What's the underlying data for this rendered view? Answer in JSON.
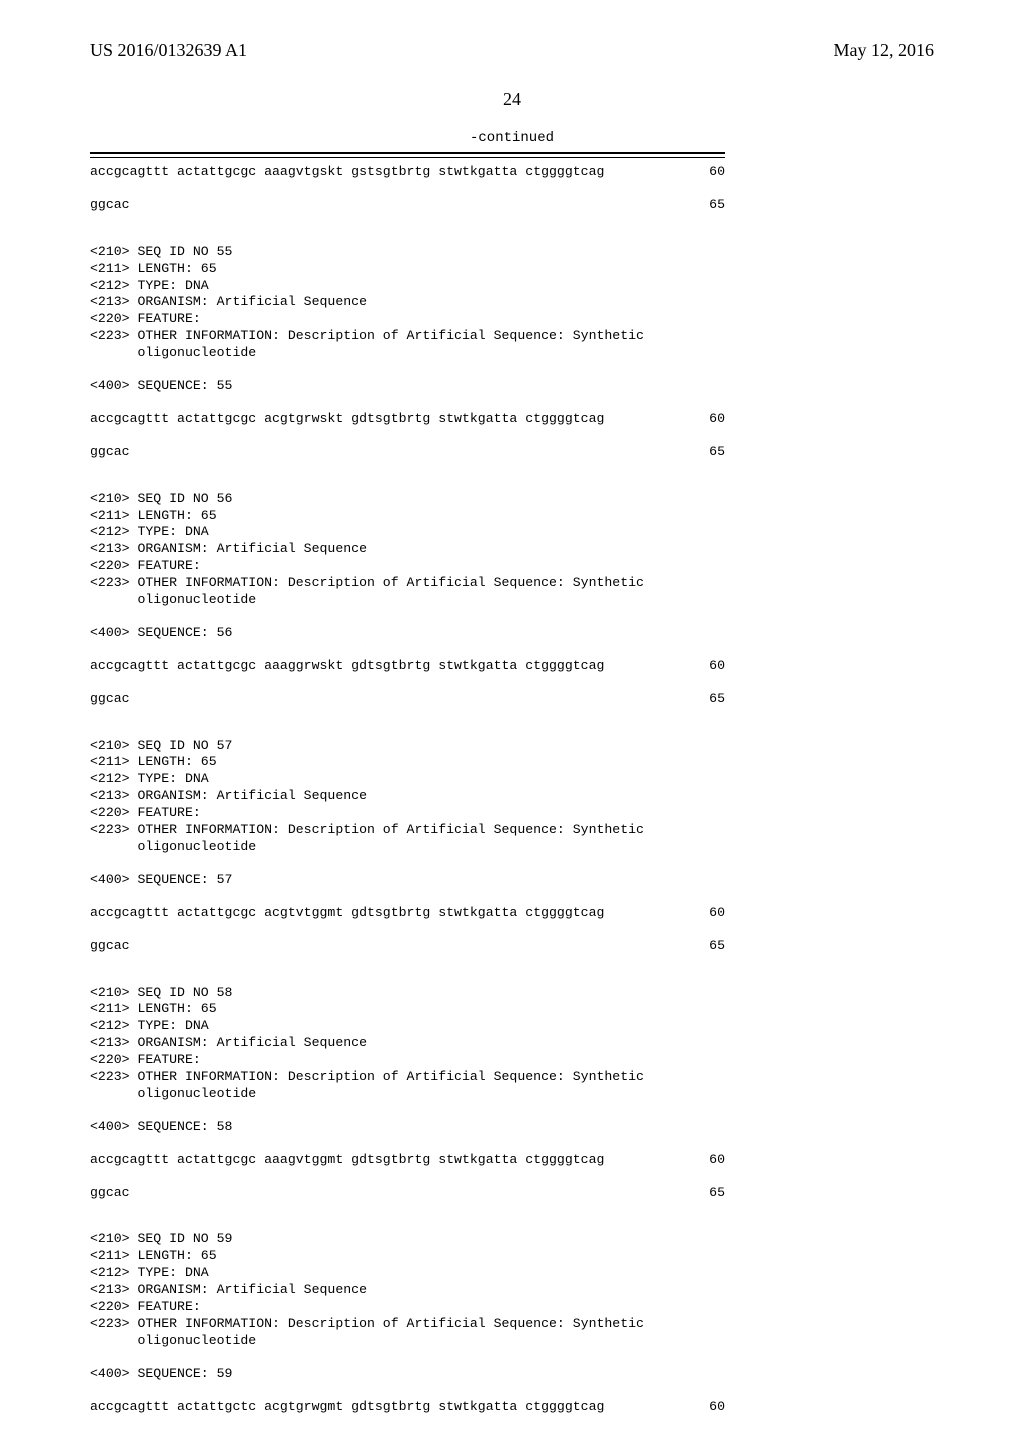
{
  "header": {
    "left": "US 2016/0132639 A1",
    "right": "May 12, 2016"
  },
  "page_number": "24",
  "continued_label": "-continued",
  "blocks": [
    {
      "type": "seqline",
      "text": "accgcagttt actattgcgc aaagvtgskt gstsgtbrtg stwtkgatta ctggggtcag",
      "num": "60"
    },
    {
      "type": "gap",
      "size": "md"
    },
    {
      "type": "seqline",
      "text": "ggcac",
      "num": "65"
    },
    {
      "type": "gap",
      "size": "xl"
    },
    {
      "type": "plain",
      "text": "<210> SEQ ID NO 55"
    },
    {
      "type": "plain",
      "text": "<211> LENGTH: 65"
    },
    {
      "type": "plain",
      "text": "<212> TYPE: DNA"
    },
    {
      "type": "plain",
      "text": "<213> ORGANISM: Artificial Sequence"
    },
    {
      "type": "plain",
      "text": "<220> FEATURE:"
    },
    {
      "type": "plain",
      "text": "<223> OTHER INFORMATION: Description of Artificial Sequence: Synthetic"
    },
    {
      "type": "plain",
      "text": "      oligonucleotide"
    },
    {
      "type": "gap",
      "size": "md"
    },
    {
      "type": "plain",
      "text": "<400> SEQUENCE: 55"
    },
    {
      "type": "gap",
      "size": "md"
    },
    {
      "type": "seqline",
      "text": "accgcagttt actattgcgc acgtgrwskt gdtsgtbrtg stwtkgatta ctggggtcag",
      "num": "60"
    },
    {
      "type": "gap",
      "size": "md"
    },
    {
      "type": "seqline",
      "text": "ggcac",
      "num": "65"
    },
    {
      "type": "gap",
      "size": "xl"
    },
    {
      "type": "plain",
      "text": "<210> SEQ ID NO 56"
    },
    {
      "type": "plain",
      "text": "<211> LENGTH: 65"
    },
    {
      "type": "plain",
      "text": "<212> TYPE: DNA"
    },
    {
      "type": "plain",
      "text": "<213> ORGANISM: Artificial Sequence"
    },
    {
      "type": "plain",
      "text": "<220> FEATURE:"
    },
    {
      "type": "plain",
      "text": "<223> OTHER INFORMATION: Description of Artificial Sequence: Synthetic"
    },
    {
      "type": "plain",
      "text": "      oligonucleotide"
    },
    {
      "type": "gap",
      "size": "md"
    },
    {
      "type": "plain",
      "text": "<400> SEQUENCE: 56"
    },
    {
      "type": "gap",
      "size": "md"
    },
    {
      "type": "seqline",
      "text": "accgcagttt actattgcgc aaaggrwskt gdtsgtbrtg stwtkgatta ctggggtcag",
      "num": "60"
    },
    {
      "type": "gap",
      "size": "md"
    },
    {
      "type": "seqline",
      "text": "ggcac",
      "num": "65"
    },
    {
      "type": "gap",
      "size": "xl"
    },
    {
      "type": "plain",
      "text": "<210> SEQ ID NO 57"
    },
    {
      "type": "plain",
      "text": "<211> LENGTH: 65"
    },
    {
      "type": "plain",
      "text": "<212> TYPE: DNA"
    },
    {
      "type": "plain",
      "text": "<213> ORGANISM: Artificial Sequence"
    },
    {
      "type": "plain",
      "text": "<220> FEATURE:"
    },
    {
      "type": "plain",
      "text": "<223> OTHER INFORMATION: Description of Artificial Sequence: Synthetic"
    },
    {
      "type": "plain",
      "text": "      oligonucleotide"
    },
    {
      "type": "gap",
      "size": "md"
    },
    {
      "type": "plain",
      "text": "<400> SEQUENCE: 57"
    },
    {
      "type": "gap",
      "size": "md"
    },
    {
      "type": "seqline",
      "text": "accgcagttt actattgcgc acgtvtggmt gdtsgtbrtg stwtkgatta ctggggtcag",
      "num": "60"
    },
    {
      "type": "gap",
      "size": "md"
    },
    {
      "type": "seqline",
      "text": "ggcac",
      "num": "65"
    },
    {
      "type": "gap",
      "size": "xl"
    },
    {
      "type": "plain",
      "text": "<210> SEQ ID NO 58"
    },
    {
      "type": "plain",
      "text": "<211> LENGTH: 65"
    },
    {
      "type": "plain",
      "text": "<212> TYPE: DNA"
    },
    {
      "type": "plain",
      "text": "<213> ORGANISM: Artificial Sequence"
    },
    {
      "type": "plain",
      "text": "<220> FEATURE:"
    },
    {
      "type": "plain",
      "text": "<223> OTHER INFORMATION: Description of Artificial Sequence: Synthetic"
    },
    {
      "type": "plain",
      "text": "      oligonucleotide"
    },
    {
      "type": "gap",
      "size": "md"
    },
    {
      "type": "plain",
      "text": "<400> SEQUENCE: 58"
    },
    {
      "type": "gap",
      "size": "md"
    },
    {
      "type": "seqline",
      "text": "accgcagttt actattgcgc aaagvtggmt gdtsgtbrtg stwtkgatta ctggggtcag",
      "num": "60"
    },
    {
      "type": "gap",
      "size": "md"
    },
    {
      "type": "seqline",
      "text": "ggcac",
      "num": "65"
    },
    {
      "type": "gap",
      "size": "xl"
    },
    {
      "type": "plain",
      "text": "<210> SEQ ID NO 59"
    },
    {
      "type": "plain",
      "text": "<211> LENGTH: 65"
    },
    {
      "type": "plain",
      "text": "<212> TYPE: DNA"
    },
    {
      "type": "plain",
      "text": "<213> ORGANISM: Artificial Sequence"
    },
    {
      "type": "plain",
      "text": "<220> FEATURE:"
    },
    {
      "type": "plain",
      "text": "<223> OTHER INFORMATION: Description of Artificial Sequence: Synthetic"
    },
    {
      "type": "plain",
      "text": "      oligonucleotide"
    },
    {
      "type": "gap",
      "size": "md"
    },
    {
      "type": "plain",
      "text": "<400> SEQUENCE: 59"
    },
    {
      "type": "gap",
      "size": "md"
    },
    {
      "type": "seqline",
      "text": "accgcagttt actattgctc acgtgrwgmt gdtsgtbrtg stwtkgatta ctggggtcag",
      "num": "60"
    }
  ]
}
